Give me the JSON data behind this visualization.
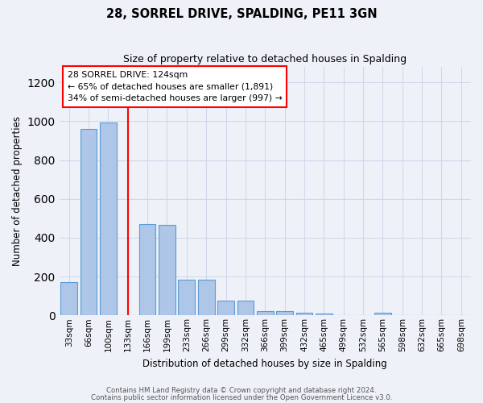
{
  "title": "28, SORREL DRIVE, SPALDING, PE11 3GN",
  "subtitle": "Size of property relative to detached houses in Spalding",
  "xlabel": "Distribution of detached houses by size in Spalding",
  "ylabel": "Number of detached properties",
  "footnote1": "Contains HM Land Registry data © Crown copyright and database right 2024.",
  "footnote2": "Contains public sector information licensed under the Open Government Licence v3.0.",
  "annotation_title": "28 SORREL DRIVE: 124sqm",
  "annotation_line1": "← 65% of detached houses are smaller (1,891)",
  "annotation_line2": "34% of semi-detached houses are larger (997) →",
  "bin_labels": [
    "33sqm",
    "66sqm",
    "100sqm",
    "133sqm",
    "166sqm",
    "199sqm",
    "233sqm",
    "266sqm",
    "299sqm",
    "332sqm",
    "366sqm",
    "399sqm",
    "432sqm",
    "465sqm",
    "499sqm",
    "532sqm",
    "565sqm",
    "598sqm",
    "632sqm",
    "665sqm",
    "698sqm"
  ],
  "bar_values": [
    170,
    960,
    995,
    0,
    470,
    465,
    185,
    185,
    75,
    75,
    22,
    22,
    15,
    10,
    0,
    0,
    12,
    0,
    0,
    0,
    0
  ],
  "bar_color": "#aec6e8",
  "bar_edge_color": "#5b9bd5",
  "grid_color": "#d0d8e8",
  "bg_color": "#eef2f8",
  "red_line_index": 3,
  "ylim": [
    0,
    1280
  ],
  "yticks": [
    0,
    200,
    400,
    600,
    800,
    1000,
    1200
  ]
}
